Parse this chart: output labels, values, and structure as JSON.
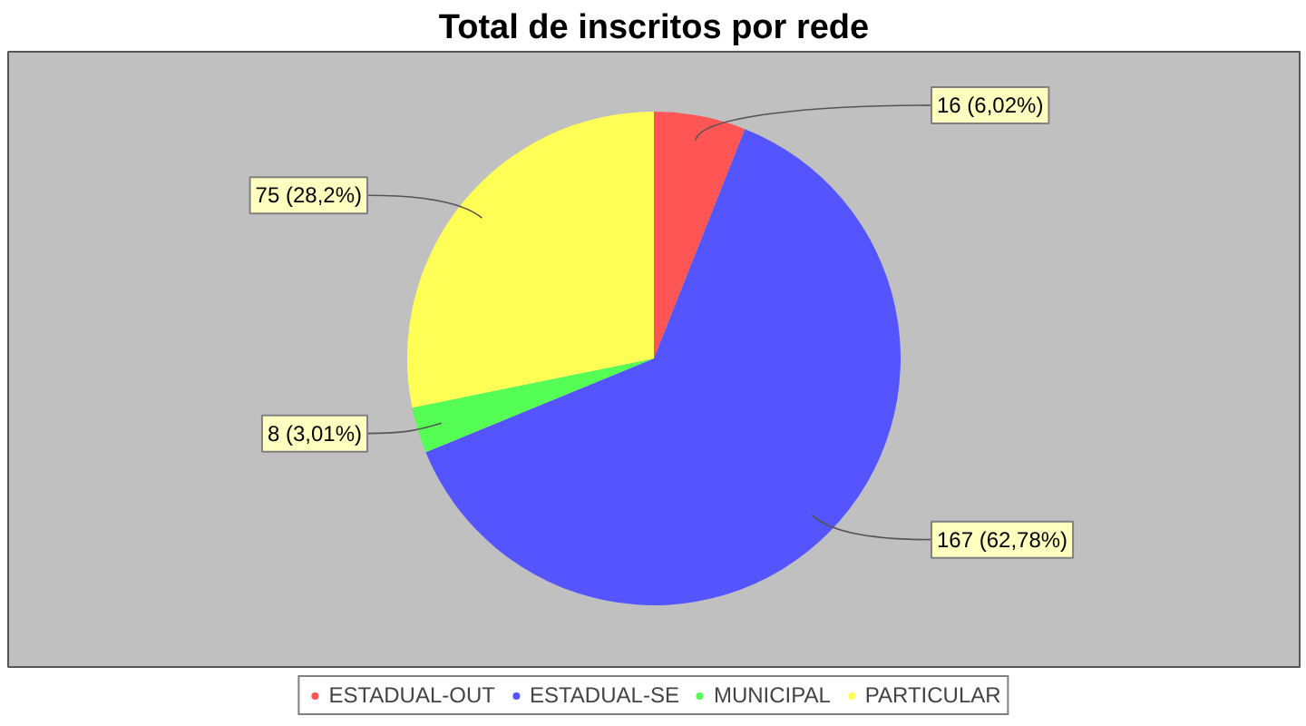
{
  "chart_data": {
    "type": "pie",
    "title": "Total de inscritos por rede",
    "categories": [
      "ESTADUAL-OUT",
      "ESTADUAL-SE",
      "MUNICIPAL",
      "PARTICULAR"
    ],
    "values": [
      16,
      167,
      8,
      75
    ],
    "colors": [
      "#ff5555",
      "#5555ff",
      "#55ff55",
      "#ffff55"
    ],
    "value_labels": [
      "16 (6,02%)",
      "167 (62,78%)",
      "8 (3,01%)",
      "75 (28,2%)"
    ],
    "legend": "bottom"
  }
}
